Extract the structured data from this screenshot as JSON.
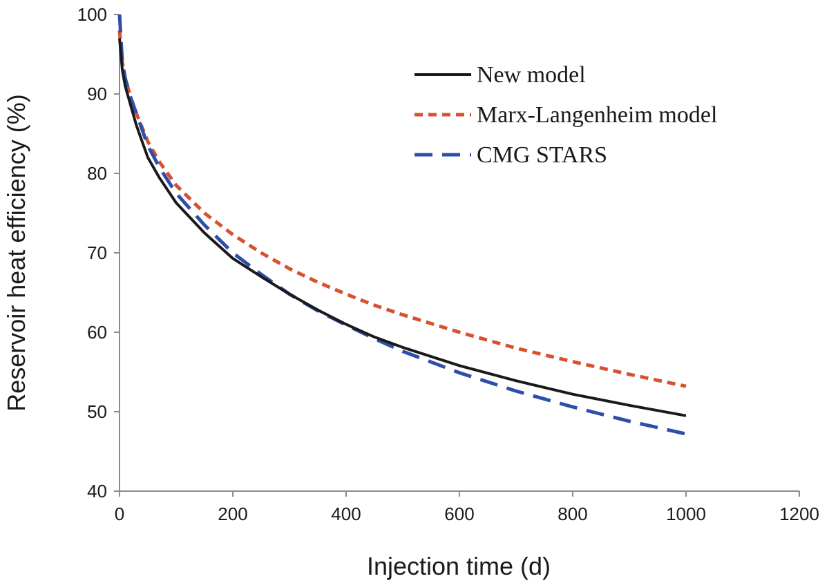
{
  "chart_data": {
    "type": "line",
    "title": "",
    "xlabel": "Injection time (d)",
    "ylabel": "Reservoir heat efficiency (%)",
    "xlim": [
      0,
      1200
    ],
    "ylim": [
      40,
      100
    ],
    "xticks": [
      0,
      200,
      400,
      600,
      800,
      1000,
      1200
    ],
    "yticks": [
      40,
      50,
      60,
      70,
      80,
      90,
      100
    ],
    "grid": false,
    "legend_position": "top-right",
    "series": [
      {
        "name": "New model",
        "color": "#1a1a1a",
        "style": "solid",
        "x": [
          0,
          5,
          10,
          20,
          30,
          50,
          70,
          100,
          150,
          200,
          250,
          300,
          350,
          400,
          450,
          500,
          600,
          700,
          800,
          900,
          1000
        ],
        "y": [
          97,
          93,
          91,
          88.5,
          86,
          82,
          79.5,
          76.3,
          72.5,
          69.3,
          67,
          64.8,
          62.8,
          61,
          59.4,
          58.1,
          55.8,
          53.9,
          52.2,
          50.8,
          49.5
        ]
      },
      {
        "name": "Marx-Langenheim model",
        "color": "#d9502f",
        "style": "short-dash",
        "x": [
          0,
          5,
          10,
          20,
          30,
          50,
          70,
          100,
          150,
          200,
          250,
          300,
          350,
          400,
          450,
          500,
          600,
          700,
          800,
          900,
          1000
        ],
        "y": [
          98,
          94,
          92,
          89.5,
          87.5,
          84,
          81.5,
          78.5,
          75,
          72.3,
          70,
          68,
          66.3,
          64.8,
          63.4,
          62.2,
          60,
          58,
          56.3,
          54.7,
          53.2
        ]
      },
      {
        "name": "CMG STARS",
        "color": "#2f4ea8",
        "style": "long-dash",
        "x": [
          0,
          5,
          10,
          20,
          30,
          50,
          70,
          100,
          150,
          200,
          250,
          300,
          350,
          400,
          450,
          500,
          600,
          700,
          800,
          900,
          1000
        ],
        "y": [
          100,
          94,
          92,
          89.5,
          87.5,
          83.5,
          80.8,
          77.5,
          73.5,
          70,
          67.3,
          64.8,
          62.7,
          60.9,
          59.2,
          57.6,
          54.9,
          52.6,
          50.6,
          48.8,
          47.2
        ]
      }
    ]
  }
}
